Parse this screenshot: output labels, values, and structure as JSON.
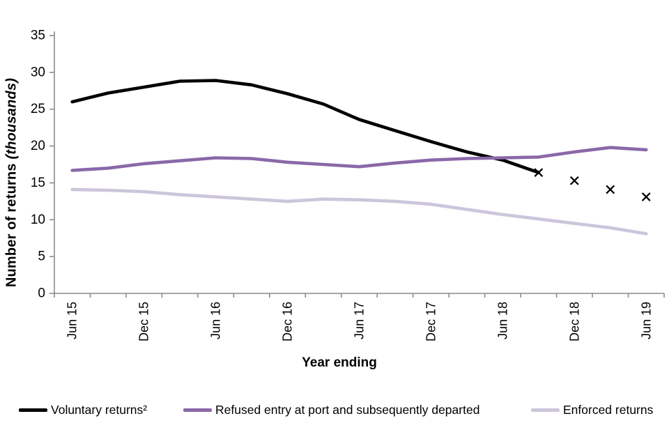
{
  "chart_data": {
    "type": "line",
    "title": "",
    "xlabel": "Year ending",
    "ylabel_bold": "Number of returns",
    "ylabel_italic": "(thousands)",
    "ylim": [
      0,
      35
    ],
    "yticks": [
      0,
      5,
      10,
      15,
      20,
      25,
      30,
      35
    ],
    "grid": false,
    "legend_position": "bottom",
    "axis_color": "#8c8c8c",
    "x_label_every": 2,
    "categories": [
      "Jun 15",
      "Sep 15",
      "Dec 15",
      "Mar 16",
      "Jun 16",
      "Sep 16",
      "Dec 16",
      "Mar 17",
      "Jun 17",
      "Sep 17",
      "Dec 17",
      "Mar 18",
      "Jun 18",
      "Sep 18",
      "Dec 18",
      "Mar 19",
      "Jun 19"
    ],
    "series": [
      {
        "name": "Voluntary returns²",
        "color": "#000000",
        "style": "solid",
        "values": [
          26.0,
          27.2,
          28.0,
          28.8,
          28.9,
          28.3,
          27.1,
          25.7,
          23.6,
          22.1,
          20.6,
          19.2,
          18.1,
          16.4,
          null,
          null,
          null
        ]
      },
      {
        "name": "Refused entry at port and subsequently departed",
        "color": "#8a68a8",
        "style": "solid",
        "values": [
          16.7,
          17.0,
          17.6,
          18.0,
          18.4,
          18.3,
          17.8,
          17.5,
          17.2,
          17.7,
          18.1,
          18.3,
          18.4,
          18.5,
          19.2,
          19.8,
          19.5
        ]
      },
      {
        "name": "Enforced returns",
        "color": "#ccc5db",
        "style": "solid",
        "values": [
          14.1,
          14.0,
          13.8,
          13.4,
          13.1,
          12.8,
          12.5,
          12.8,
          12.7,
          12.5,
          12.1,
          11.4,
          10.7,
          10.1,
          9.5,
          8.9,
          8.1
        ]
      },
      {
        "name": "Voluntary returns² (×)",
        "color": "#000000",
        "style": "x-markers",
        "values": [
          null,
          null,
          null,
          null,
          null,
          null,
          null,
          null,
          null,
          null,
          null,
          null,
          null,
          16.4,
          15.3,
          14.1,
          13.1
        ]
      }
    ]
  }
}
